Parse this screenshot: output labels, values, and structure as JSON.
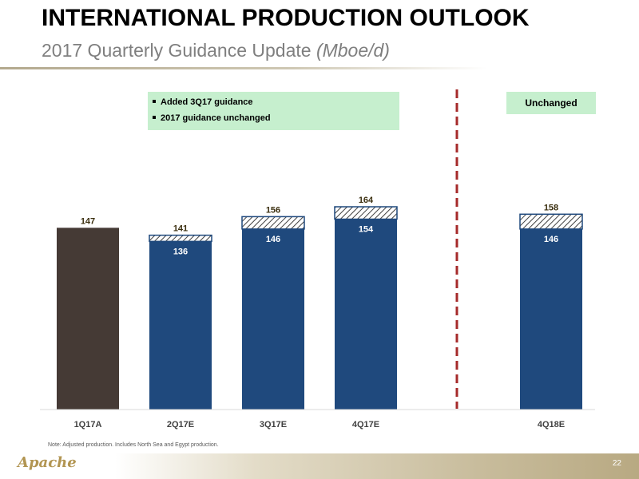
{
  "title": "INTERNATIONAL PRODUCTION OUTLOOK",
  "subtitle": {
    "main": "2017 Quarterly Guidance Update ",
    "unit": "(Mboe/d)"
  },
  "legend": {
    "items": [
      "Added 3Q17 guidance",
      "2017 guidance unchanged"
    ]
  },
  "badge": "Unchanged",
  "note": "Note: Adjusted production.  Includes North Sea and Egypt production.",
  "logo": "Apache",
  "page_number": "22",
  "colors": {
    "actual": "#453a35",
    "guidance": "#1f497d",
    "legend_bg": "#c6efce",
    "divider": "#a52a2a"
  },
  "chart_data": {
    "type": "bar",
    "categories": [
      "1Q17A",
      "2Q17E",
      "3Q17E",
      "4Q17E",
      "4Q18E"
    ],
    "ylim": [
      0,
      164
    ],
    "series": [
      {
        "values": [
          147,
          136,
          146,
          154,
          146
        ]
      },
      {
        "values": [
          0,
          5,
          10,
          10,
          12
        ]
      }
    ],
    "base_labels": [
      "",
      "136",
      "146",
      "154",
      "146"
    ],
    "total_labels": [
      "147",
      "141",
      "156",
      "164",
      "158"
    ],
    "grid": false
  }
}
